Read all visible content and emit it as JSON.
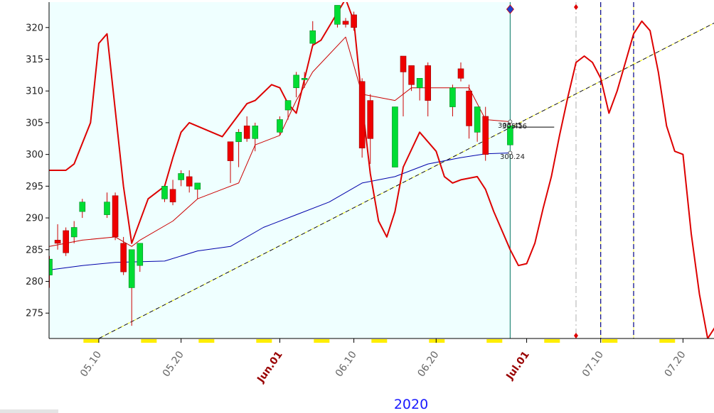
{
  "chart_data": {
    "type": "candlestick",
    "year_label": "2020",
    "ylim": [
      271,
      324
    ],
    "y_ticks": [
      275,
      280,
      285,
      290,
      295,
      300,
      305,
      310,
      315,
      320
    ],
    "x_domain": [
      "2020-05-04",
      "2020-07-27"
    ],
    "history_end": "2020-06-29",
    "x_ticks": [
      {
        "date": "2020-05-10",
        "label": "05.10",
        "major": false
      },
      {
        "date": "2020-05-20",
        "label": "05.20",
        "major": false
      },
      {
        "date": "2020-06-01",
        "label": "Jun.01",
        "major": true
      },
      {
        "date": "2020-06-10",
        "label": "06.10",
        "major": false
      },
      {
        "date": "2020-06-20",
        "label": "06.20",
        "major": false
      },
      {
        "date": "2020-07-01",
        "label": "Jul.01",
        "major": true
      },
      {
        "date": "2020-07-10",
        "label": "07.10",
        "major": false
      },
      {
        "date": "2020-07-20",
        "label": "07.20",
        "major": false
      }
    ],
    "weekends": [
      "2020-05-09",
      "2020-05-16",
      "2020-05-23",
      "2020-05-30",
      "2020-06-06",
      "2020-06-13",
      "2020-06-20",
      "2020-06-27",
      "2020-07-04",
      "2020-07-11",
      "2020-07-18",
      "2020-07-25"
    ],
    "candles": [
      {
        "date": "2020-05-04",
        "open": 281.0,
        "high": 284.0,
        "low": 279.0,
        "close": 283.5
      },
      {
        "date": "2020-05-05",
        "open": 286.5,
        "high": 289.0,
        "low": 285.0,
        "close": 286.0
      },
      {
        "date": "2020-05-06",
        "open": 288.0,
        "high": 288.5,
        "low": 284.0,
        "close": 284.5
      },
      {
        "date": "2020-05-07",
        "open": 287.0,
        "high": 289.5,
        "low": 286.0,
        "close": 288.5
      },
      {
        "date": "2020-05-08",
        "open": 291.0,
        "high": 293.0,
        "low": 290.0,
        "close": 292.5
      },
      {
        "date": "2020-05-11",
        "open": 290.5,
        "high": 294.0,
        "low": 290.0,
        "close": 292.5
      },
      {
        "date": "2020-05-12",
        "open": 293.5,
        "high": 294.0,
        "low": 286.5,
        "close": 287.0
      },
      {
        "date": "2020-05-13",
        "open": 286.0,
        "high": 287.0,
        "low": 281.0,
        "close": 281.5
      },
      {
        "date": "2020-05-14",
        "open": 279.0,
        "high": 285.0,
        "low": 273.0,
        "close": 285.0
      },
      {
        "date": "2020-05-15",
        "open": 282.5,
        "high": 286.0,
        "low": 281.5,
        "close": 286.0
      },
      {
        "date": "2020-05-18",
        "open": 293.0,
        "high": 295.0,
        "low": 292.5,
        "close": 295.0
      },
      {
        "date": "2020-05-19",
        "open": 294.5,
        "high": 296.0,
        "low": 292.0,
        "close": 292.5
      },
      {
        "date": "2020-05-20",
        "open": 296.0,
        "high": 297.5,
        "low": 295.0,
        "close": 297.0
      },
      {
        "date": "2020-05-21",
        "open": 296.5,
        "high": 297.5,
        "low": 294.0,
        "close": 295.0
      },
      {
        "date": "2020-05-22",
        "open": 294.5,
        "high": 295.5,
        "low": 293.0,
        "close": 295.5
      },
      {
        "date": "2020-05-26",
        "open": 302.0,
        "high": 302.0,
        "low": 295.5,
        "close": 299.0
      },
      {
        "date": "2020-05-27",
        "open": 302.0,
        "high": 304.0,
        "low": 298.0,
        "close": 303.5
      },
      {
        "date": "2020-05-28",
        "open": 304.5,
        "high": 306.0,
        "low": 302.0,
        "close": 302.5
      },
      {
        "date": "2020-05-29",
        "open": 302.5,
        "high": 305.0,
        "low": 300.5,
        "close": 304.5
      },
      {
        "date": "2020-06-01",
        "open": 303.5,
        "high": 306.0,
        "low": 303.0,
        "close": 305.5
      },
      {
        "date": "2020-06-02",
        "open": 307.0,
        "high": 308.5,
        "low": 305.5,
        "close": 308.5
      },
      {
        "date": "2020-06-03",
        "open": 310.5,
        "high": 313.0,
        "low": 309.0,
        "close": 312.5
      },
      {
        "date": "2020-06-04",
        "open": 312.0,
        "high": 313.0,
        "low": 310.5,
        "close": 312.0
      },
      {
        "date": "2020-06-05",
        "open": 317.5,
        "high": 321.0,
        "low": 317.0,
        "close": 319.5
      },
      {
        "date": "2020-06-08",
        "open": 320.5,
        "high": 323.5,
        "low": 320.0,
        "close": 323.5
      },
      {
        "date": "2020-06-09",
        "open": 321.0,
        "high": 321.5,
        "low": 320.0,
        "close": 320.5
      },
      {
        "date": "2020-06-10",
        "open": 322.0,
        "high": 322.5,
        "low": 319.5,
        "close": 320.0
      },
      {
        "date": "2020-06-11",
        "open": 311.5,
        "high": 312.0,
        "low": 299.5,
        "close": 301.0
      },
      {
        "date": "2020-06-12",
        "open": 308.5,
        "high": 309.5,
        "low": 298.5,
        "close": 302.5
      },
      {
        "date": "2020-06-15",
        "open": 298.0,
        "high": 307.5,
        "low": 298.0,
        "close": 307.5
      },
      {
        "date": "2020-06-16",
        "open": 315.5,
        "high": 315.5,
        "low": 306.0,
        "close": 313.0
      },
      {
        "date": "2020-06-17",
        "open": 314.0,
        "high": 314.0,
        "low": 310.0,
        "close": 311.0
      },
      {
        "date": "2020-06-18",
        "open": 310.5,
        "high": 312.0,
        "low": 308.5,
        "close": 312.0
      },
      {
        "date": "2020-06-19",
        "open": 314.0,
        "high": 314.5,
        "low": 306.0,
        "close": 308.5
      },
      {
        "date": "2020-06-22",
        "open": 307.5,
        "high": 311.0,
        "low": 306.0,
        "close": 310.5
      },
      {
        "date": "2020-06-23",
        "open": 313.5,
        "high": 314.5,
        "low": 311.5,
        "close": 312.0
      },
      {
        "date": "2020-06-24",
        "open": 310.0,
        "high": 311.0,
        "low": 302.5,
        "close": 304.5
      },
      {
        "date": "2020-06-25",
        "open": 303.5,
        "high": 307.5,
        "low": 302.0,
        "close": 307.5
      },
      {
        "date": "2020-06-26",
        "open": 306.0,
        "high": 307.5,
        "low": 299.0,
        "close": 300.0
      },
      {
        "date": "2020-06-29",
        "open": 301.5,
        "high": 305.5,
        "low": 301.5,
        "close": 304.5
      }
    ],
    "series": [
      {
        "color": "#cc0000",
        "width": 1,
        "points": [
          [
            "2020-05-04",
            285.5
          ],
          [
            "2020-05-08",
            286.5
          ],
          [
            "2020-05-12",
            287.0
          ],
          [
            "2020-05-14",
            285.5
          ],
          [
            "2020-05-15",
            286.5
          ],
          [
            "2020-05-19",
            289.5
          ],
          [
            "2020-05-22",
            293.0
          ],
          [
            "2020-05-25",
            294.5
          ],
          [
            "2020-05-27",
            295.5
          ],
          [
            "2020-05-29",
            301.5
          ],
          [
            "2020-06-01",
            303.0
          ],
          [
            "2020-06-03",
            308.5
          ],
          [
            "2020-06-05",
            313.0
          ],
          [
            "2020-06-09",
            318.5
          ],
          [
            "2020-06-11",
            309.5
          ],
          [
            "2020-06-15",
            308.5
          ],
          [
            "2020-06-17",
            310.5
          ],
          [
            "2020-06-21",
            310.5
          ],
          [
            "2020-06-24",
            310.5
          ],
          [
            "2020-06-26",
            305.5
          ],
          [
            "2020-06-29",
            305.16
          ]
        ]
      },
      {
        "color": "#0000aa",
        "width": 1,
        "points": [
          [
            "2020-05-04",
            281.8
          ],
          [
            "2020-05-08",
            282.5
          ],
          [
            "2020-05-12",
            283.0
          ],
          [
            "2020-05-18",
            283.2
          ],
          [
            "2020-05-22",
            284.8
          ],
          [
            "2020-05-26",
            285.5
          ],
          [
            "2020-05-30",
            288.5
          ],
          [
            "2020-06-03",
            290.5
          ],
          [
            "2020-06-07",
            292.5
          ],
          [
            "2020-06-11",
            295.5
          ],
          [
            "2020-06-15",
            296.5
          ],
          [
            "2020-06-19",
            298.5
          ],
          [
            "2020-06-23",
            299.5
          ],
          [
            "2020-06-26",
            300.1
          ],
          [
            "2020-06-29",
            300.24
          ]
        ]
      },
      {
        "color": "#dd0000",
        "width": 2,
        "points": [
          [
            "2020-05-03",
            297
          ],
          [
            "2020-05-04",
            297.5
          ],
          [
            "2020-05-06",
            297.5
          ],
          [
            "2020-05-07",
            298.5
          ],
          [
            "2020-05-09",
            305
          ],
          [
            "2020-05-10",
            317.5
          ],
          [
            "2020-05-11",
            319
          ],
          [
            "2020-05-13",
            295
          ],
          [
            "2020-05-14",
            286
          ],
          [
            "2020-05-16",
            293
          ],
          [
            "2020-05-18",
            295
          ],
          [
            "2020-05-19",
            299.5
          ],
          [
            "2020-05-20",
            303.5
          ],
          [
            "2020-05-21",
            305
          ],
          [
            "2020-05-25",
            302.8
          ],
          [
            "2020-05-28",
            308
          ],
          [
            "2020-05-29",
            308.5
          ],
          [
            "2020-05-31",
            311
          ],
          [
            "2020-06-01",
            310.5
          ],
          [
            "2020-06-02",
            308
          ],
          [
            "2020-06-03",
            306.5
          ],
          [
            "2020-06-05",
            317.2
          ],
          [
            "2020-06-06",
            318
          ],
          [
            "2020-06-09",
            324.5
          ],
          [
            "2020-06-10",
            321
          ],
          [
            "2020-06-11",
            308
          ],
          [
            "2020-06-12",
            297
          ],
          [
            "2020-06-13",
            289.5
          ],
          [
            "2020-06-14",
            287
          ],
          [
            "2020-06-15",
            291
          ],
          [
            "2020-06-16",
            298
          ],
          [
            "2020-06-18",
            303.5
          ],
          [
            "2020-06-20",
            300.5
          ],
          [
            "2020-06-21",
            296.5
          ],
          [
            "2020-06-22",
            295.5
          ],
          [
            "2020-06-23",
            296
          ],
          [
            "2020-06-25",
            296.5
          ],
          [
            "2020-06-26",
            294.5
          ],
          [
            "2020-06-27",
            291
          ],
          [
            "2020-06-28",
            288
          ],
          [
            "2020-06-29",
            285
          ],
          [
            "2020-06-30",
            282.5
          ],
          [
            "2020-07-01",
            282.8
          ],
          [
            "2020-07-02",
            286
          ],
          [
            "2020-07-03",
            291.5
          ],
          [
            "2020-07-04",
            296.5
          ],
          [
            "2020-07-05",
            303
          ],
          [
            "2020-07-06",
            309
          ],
          [
            "2020-07-07",
            314.5
          ],
          [
            "2020-07-08",
            315.5
          ],
          [
            "2020-07-09",
            314.5
          ],
          [
            "2020-07-10",
            312
          ],
          [
            "2020-07-11",
            306.5
          ],
          [
            "2020-07-12",
            310
          ],
          [
            "2020-07-13",
            314.5
          ],
          [
            "2020-07-14",
            319
          ],
          [
            "2020-07-15",
            321
          ],
          [
            "2020-07-16",
            319.5
          ],
          [
            "2020-07-17",
            313
          ],
          [
            "2020-07-18",
            304.5
          ],
          [
            "2020-07-19",
            300.5
          ],
          [
            "2020-07-20",
            300
          ],
          [
            "2020-07-21",
            287.5
          ],
          [
            "2020-07-22",
            278
          ],
          [
            "2020-07-23",
            271
          ],
          [
            "2020-07-24",
            273
          ],
          [
            "2020-07-25",
            281
          ],
          [
            "2020-07-26",
            283.5
          ],
          [
            "2020-07-27",
            291
          ],
          [
            "2020-07-28",
            301
          ]
        ]
      }
    ],
    "trendline": {
      "color": "#111111",
      "points": [
        [
          "2020-05-10",
          271
        ],
        [
          "2020-07-28",
          323.5
        ]
      ]
    },
    "hline": {
      "date_start": "2020-06-29",
      "date_end": "2020-07-04",
      "value": 304.3
    },
    "vlines": [
      {
        "date": "2020-06-29",
        "color": "#2a8a7a",
        "style": "solid"
      },
      {
        "date": "2020-07-07",
        "color": "#bbbbbb",
        "style": "dashdot"
      },
      {
        "date": "2020-07-10",
        "color": "#000080",
        "style": "dash"
      },
      {
        "date": "2020-07-14",
        "color": "#000080",
        "style": "dash"
      }
    ],
    "annotations": [
      "305.45",
      "305.16",
      "300.24"
    ]
  }
}
